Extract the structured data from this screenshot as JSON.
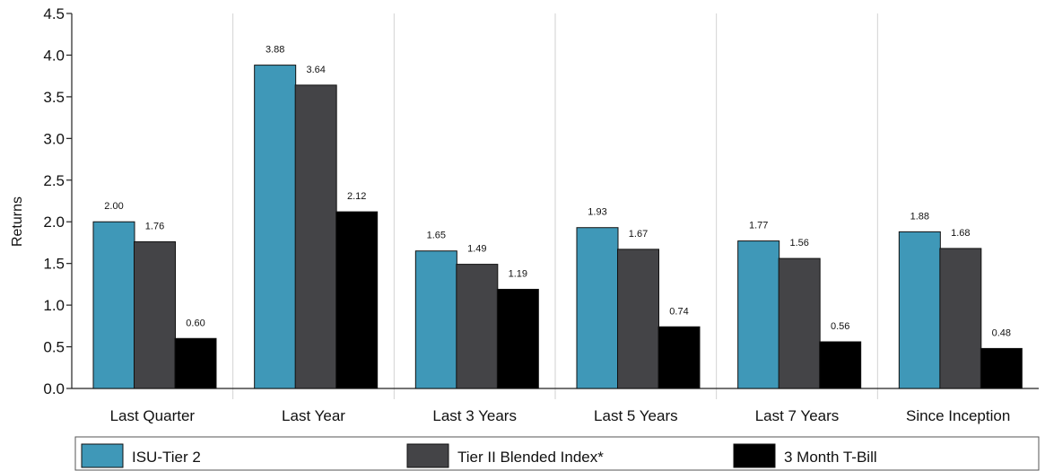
{
  "chart_data": {
    "type": "bar",
    "title": "",
    "xlabel": "",
    "ylabel": "Returns",
    "ylim": [
      0,
      4.5
    ],
    "yticks": [
      "0.0",
      "0.5",
      "1.0",
      "1.5",
      "2.0",
      "2.5",
      "3.0",
      "3.5",
      "4.0",
      "4.5"
    ],
    "categories": [
      "Last Quarter",
      "Last Year",
      "Last 3 Years",
      "Last 5 Years",
      "Last 7 Years",
      "Since Inception"
    ],
    "series": [
      {
        "name": "ISU-Tier 2",
        "color": "#3f98b8",
        "values": [
          2.0,
          3.88,
          1.65,
          1.93,
          1.77,
          1.88
        ],
        "labels": [
          "2.00",
          "3.88",
          "1.65",
          "1.93",
          "1.77",
          "1.88"
        ]
      },
      {
        "name": "Tier II Blended Index*",
        "color": "#444447",
        "values": [
          1.76,
          3.64,
          1.49,
          1.67,
          1.56,
          1.68
        ],
        "labels": [
          "1.76",
          "3.64",
          "1.49",
          "1.67",
          "1.56",
          "1.68"
        ]
      },
      {
        "name": "3 Month T-Bill",
        "color": "#000000",
        "values": [
          0.6,
          2.12,
          1.19,
          0.74,
          0.56,
          0.48
        ],
        "labels": [
          "0.60",
          "2.12",
          "1.19",
          "0.74",
          "0.56",
          "0.48"
        ]
      }
    ],
    "grid": "vertical-separators",
    "legend_position": "bottom"
  }
}
